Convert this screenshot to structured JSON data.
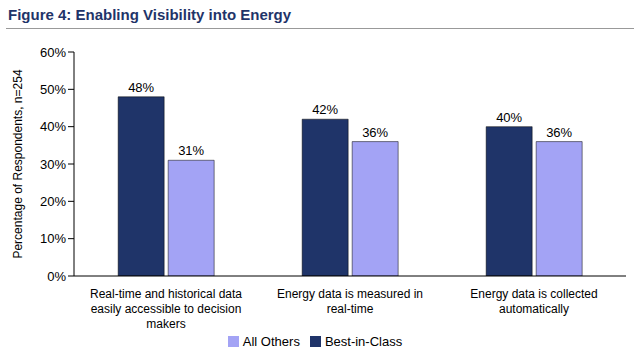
{
  "chart_data": {
    "type": "bar",
    "title": "Figure 4: Enabling Visibility into Energy",
    "y_label": "Percentage of Respondents, n=254",
    "categories": [
      "Real-time and historical data easily accessible to decision makers",
      "Energy data is measured in real-time",
      "Energy data is collected automatically"
    ],
    "series": [
      {
        "name": "Best-in-Class",
        "color": "#1f3469",
        "values": [
          48,
          42,
          40
        ],
        "value_labels": [
          "48%",
          "42%",
          "40%"
        ]
      },
      {
        "name": "All Others",
        "color": "#a3a3f5",
        "values": [
          31,
          36,
          36
        ],
        "value_labels": [
          "31%",
          "36%",
          "36%"
        ]
      }
    ],
    "ylim": [
      0,
      60
    ],
    "yticks": [
      {
        "value": 0,
        "label": "0%"
      },
      {
        "value": 10,
        "label": "10%"
      },
      {
        "value": 20,
        "label": "20%"
      },
      {
        "value": 30,
        "label": "30%"
      },
      {
        "value": 40,
        "label": "40%"
      },
      {
        "value": 50,
        "label": "50%"
      },
      {
        "value": 60,
        "label": "60%"
      }
    ],
    "grid": false,
    "legend": "bottom",
    "data_labels": true
  }
}
